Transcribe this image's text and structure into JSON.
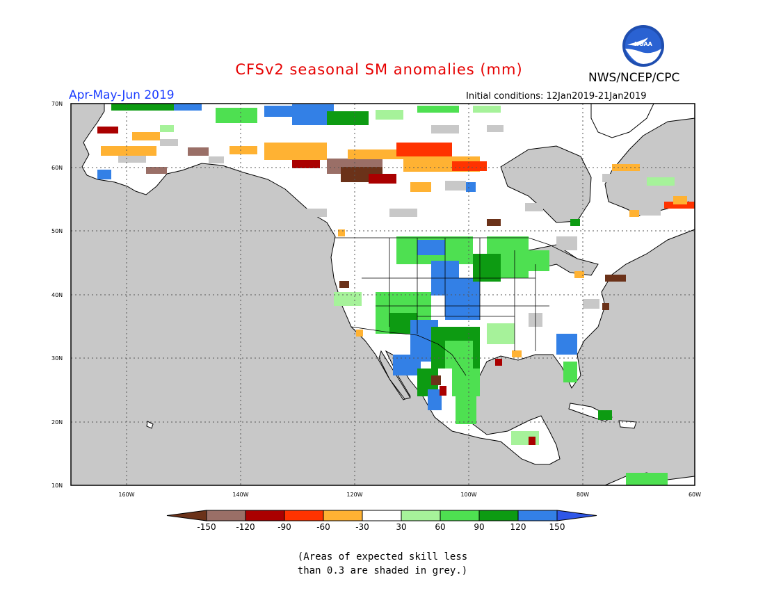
{
  "header": {
    "title": "CFSv2 seasonal SM anomalies (mm)",
    "agency": "NWS/NCEP/CPC",
    "logo_text": "NOAA",
    "season": "Apr-May-Jun 2019",
    "initial_conditions": "Initial conditions: 12Jan2019-21Jan2019"
  },
  "map": {
    "lat_labels": [
      "70N",
      "60N",
      "50N",
      "40N",
      "30N",
      "20N",
      "10N"
    ],
    "lon_labels": [
      "160W",
      "140W",
      "120W",
      "100W",
      "80W",
      "60W"
    ],
    "lat_range": [
      10,
      70
    ],
    "lon_range": [
      -172,
      -60
    ],
    "colors": {
      "ocean_or_masked": "#c8c8c8",
      "land_neutral": "#ffffff",
      "low_skill": "#c8c8c8",
      "coastline": "#000000"
    }
  },
  "colorbar": {
    "labels": [
      "-150",
      "-120",
      "-90",
      "-60",
      "-30",
      "30",
      "60",
      "90",
      "120",
      "150"
    ],
    "colors": [
      "#6b3219",
      "#9a6f67",
      "#aa0000",
      "#ff3300",
      "#ffb233",
      "#ffffff",
      "#a6f29a",
      "#4ee051",
      "#0d9b12",
      "#3380e6",
      "#2e56e8"
    ]
  },
  "note": {
    "line1": "(Areas of expected skill less",
    "line2": "than 0.3 are shaded in grey.)"
  }
}
